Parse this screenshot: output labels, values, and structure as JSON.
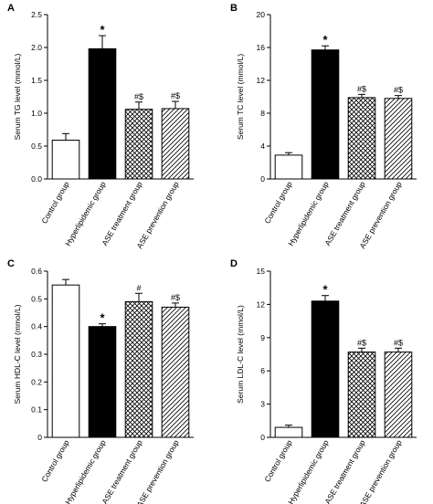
{
  "chart_data": [
    {
      "type": "bar",
      "panel": "A",
      "ylabel": "Serum TG level (mmol/L)",
      "categories": [
        "Control group",
        "Hyperlipidemic group",
        "ASE treatment group",
        "ASE prevention group"
      ],
      "values": [
        0.59,
        1.98,
        1.06,
        1.07
      ],
      "errors": [
        0.1,
        0.2,
        0.11,
        0.11
      ],
      "annotations": [
        "",
        "*",
        "#$",
        "#$"
      ],
      "fills": [
        "white",
        "black",
        "crosshatch",
        "diagonal"
      ],
      "ylim": [
        0,
        2.5
      ],
      "yticks": [
        0.0,
        0.5,
        1.0,
        1.5,
        2.0,
        2.5
      ],
      "ytick_labels": [
        "0.0",
        "0.5",
        "1.0",
        "1.5",
        "2.0",
        "2.5"
      ]
    },
    {
      "type": "bar",
      "panel": "B",
      "ylabel": "Serum TC level (mmol/L)",
      "categories": [
        "Control group",
        "Hyperlipidemic group",
        "ASE treatment group",
        "ASE prevention group"
      ],
      "values": [
        2.9,
        15.7,
        9.9,
        9.8
      ],
      "errors": [
        0.3,
        0.5,
        0.4,
        0.35
      ],
      "annotations": [
        "",
        "*",
        "#$",
        "#$"
      ],
      "fills": [
        "white",
        "black",
        "crosshatch",
        "diagonal"
      ],
      "ylim": [
        0,
        20
      ],
      "yticks": [
        0,
        4,
        8,
        12,
        16,
        20
      ],
      "ytick_labels": [
        "0",
        "4",
        "8",
        "12",
        "16",
        "20"
      ]
    },
    {
      "type": "bar",
      "panel": "C",
      "ylabel": "Serum HDL-C level (mmol/L)",
      "categories": [
        "Control group",
        "Hyperlipidemic group",
        "ASE treatment group",
        "ASE prevention group"
      ],
      "values": [
        0.55,
        0.4,
        0.49,
        0.47
      ],
      "errors": [
        0.02,
        0.01,
        0.03,
        0.015
      ],
      "annotations": [
        "",
        "*",
        "#",
        "#$"
      ],
      "fills": [
        "white",
        "black",
        "crosshatch",
        "diagonal"
      ],
      "ylim": [
        0,
        0.6
      ],
      "yticks": [
        0.0,
        0.1,
        0.2,
        0.3,
        0.4,
        0.5,
        0.6
      ],
      "ytick_labels": [
        "0",
        "0.1",
        "0.2",
        "0.3",
        "0.4",
        "0.5",
        "0.6"
      ]
    },
    {
      "type": "bar",
      "panel": "D",
      "ylabel": "Serum LDL-C level (mmol/L)",
      "categories": [
        "Control group",
        "Hyperlipidemic group",
        "ASE treatment group",
        "ASE prevention group"
      ],
      "values": [
        0.9,
        12.3,
        7.7,
        7.7
      ],
      "errors": [
        0.2,
        0.5,
        0.35,
        0.35
      ],
      "annotations": [
        "",
        "*",
        "#$",
        "#$"
      ],
      "fills": [
        "white",
        "black",
        "crosshatch",
        "diagonal"
      ],
      "ylim": [
        0,
        15
      ],
      "yticks": [
        0,
        3,
        6,
        9,
        12,
        15
      ],
      "ytick_labels": [
        "0",
        "3",
        "6",
        "9",
        "12",
        "15"
      ]
    }
  ]
}
